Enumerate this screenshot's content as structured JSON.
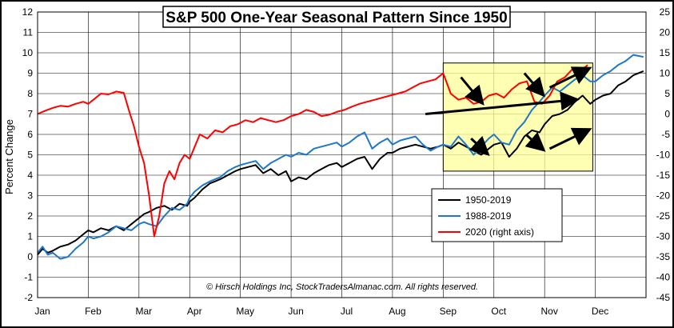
{
  "chart_data": {
    "type": "line",
    "title": "S&P 500 One-Year Seasonal Pattern Since 1950",
    "ylabel": "Percent Change",
    "copyright": "© Hirsch Holdings Inc, StockTradersAlmanac.com. All rights reserved.",
    "ylim": [
      -2,
      12
    ],
    "y_ticks": [
      -2,
      -1,
      0,
      1,
      2,
      3,
      4,
      5,
      6,
      7,
      8,
      9,
      10,
      11,
      12
    ],
    "y2lim": [
      -45,
      25
    ],
    "y2_ticks": [
      -45,
      -40,
      -35,
      -30,
      -25,
      -20,
      -15,
      -10,
      -5,
      0,
      5,
      10,
      15,
      20,
      25
    ],
    "x_ticks": [
      "Jan",
      "Feb",
      "Mar",
      "Apr",
      "May",
      "Jun",
      "Jul",
      "Aug",
      "Sep",
      "Oct",
      "Nov",
      "Dec"
    ],
    "grid": true,
    "legend_position": "lower-right",
    "highlight_region": {
      "x_start": 8.0,
      "x_end": 10.95,
      "y_start": 4.2,
      "y_end": 9.5,
      "color": "#ffff99"
    },
    "series": [
      {
        "name": "1950-2019",
        "color": "#000000",
        "axis": "left",
        "x": [
          0.0,
          0.1,
          0.2,
          0.3,
          0.45,
          0.6,
          0.75,
          0.9,
          1.0,
          1.1,
          1.25,
          1.4,
          1.55,
          1.7,
          1.85,
          2.0,
          2.1,
          2.2,
          2.35,
          2.5,
          2.65,
          2.8,
          2.95,
          3.0,
          3.1,
          3.25,
          3.4,
          3.5,
          3.6,
          3.75,
          3.9,
          4.0,
          4.15,
          4.3,
          4.45,
          4.6,
          4.75,
          4.9,
          5.0,
          5.15,
          5.3,
          5.45,
          5.6,
          5.75,
          5.9,
          6.0,
          6.15,
          6.3,
          6.45,
          6.6,
          6.75,
          6.9,
          7.0,
          7.15,
          7.3,
          7.45,
          7.6,
          7.75,
          7.9,
          8.0,
          8.15,
          8.3,
          8.45,
          8.6,
          8.75,
          8.9,
          9.0,
          9.15,
          9.3,
          9.45,
          9.6,
          9.75,
          9.9,
          10.0,
          10.15,
          10.3,
          10.45,
          10.6,
          10.75,
          10.9,
          11.0,
          11.15,
          11.3,
          11.45,
          11.6,
          11.75,
          11.95
        ],
        "y": [
          0.1,
          0.4,
          0.2,
          0.3,
          0.5,
          0.6,
          0.8,
          1.1,
          1.3,
          1.2,
          1.4,
          1.3,
          1.5,
          1.3,
          1.6,
          1.9,
          2.1,
          2.2,
          2.4,
          2.5,
          2.3,
          2.6,
          2.5,
          2.7,
          2.9,
          3.3,
          3.6,
          3.7,
          3.8,
          4.0,
          4.2,
          4.3,
          4.4,
          4.5,
          4.1,
          4.3,
          4.0,
          4.2,
          3.7,
          3.9,
          3.8,
          4.1,
          4.3,
          4.5,
          4.6,
          4.4,
          4.6,
          4.8,
          4.9,
          4.3,
          4.8,
          5.1,
          5.1,
          5.3,
          5.4,
          5.5,
          5.4,
          5.3,
          5.4,
          5.5,
          5.3,
          5.6,
          5.4,
          5.2,
          5.0,
          5.3,
          5.5,
          5.6,
          4.9,
          5.3,
          5.9,
          6.2,
          6.1,
          6.5,
          6.9,
          7.0,
          7.2,
          7.6,
          7.9,
          7.5,
          7.7,
          7.9,
          8.0,
          8.4,
          8.6,
          8.9,
          9.1
        ]
      },
      {
        "name": "1988-2019",
        "color": "#1e78c8",
        "axis": "left",
        "x": [
          0.0,
          0.1,
          0.2,
          0.3,
          0.45,
          0.6,
          0.75,
          0.9,
          1.0,
          1.1,
          1.25,
          1.4,
          1.55,
          1.7,
          1.85,
          2.0,
          2.1,
          2.2,
          2.35,
          2.5,
          2.65,
          2.8,
          2.95,
          3.0,
          3.1,
          3.25,
          3.4,
          3.5,
          3.6,
          3.75,
          3.9,
          4.0,
          4.15,
          4.3,
          4.45,
          4.6,
          4.75,
          4.9,
          5.0,
          5.15,
          5.3,
          5.45,
          5.6,
          5.75,
          5.9,
          6.0,
          6.15,
          6.3,
          6.45,
          6.6,
          6.75,
          6.9,
          7.0,
          7.15,
          7.3,
          7.45,
          7.6,
          7.75,
          7.9,
          8.0,
          8.15,
          8.3,
          8.45,
          8.6,
          8.75,
          8.9,
          9.0,
          9.15,
          9.3,
          9.45,
          9.6,
          9.75,
          9.9,
          10.0,
          10.15,
          10.3,
          10.45,
          10.6,
          10.75,
          10.9,
          11.0,
          11.15,
          11.3,
          11.45,
          11.6,
          11.75,
          11.95
        ],
        "y": [
          0.2,
          0.5,
          0.1,
          0.2,
          -0.1,
          0.0,
          0.4,
          0.7,
          1.0,
          0.9,
          1.0,
          1.2,
          1.5,
          1.4,
          1.3,
          1.6,
          1.7,
          1.6,
          1.5,
          2.0,
          2.4,
          2.3,
          2.6,
          2.9,
          3.2,
          3.5,
          3.7,
          3.8,
          3.9,
          4.2,
          4.4,
          4.5,
          4.6,
          4.7,
          4.3,
          4.6,
          4.8,
          5.0,
          4.9,
          5.1,
          5.0,
          5.3,
          5.4,
          5.5,
          5.6,
          5.4,
          5.6,
          5.9,
          6.1,
          5.3,
          5.6,
          5.8,
          5.5,
          5.7,
          5.8,
          5.9,
          5.5,
          5.2,
          5.4,
          5.5,
          5.4,
          5.9,
          5.5,
          5.0,
          5.4,
          5.8,
          6.0,
          5.6,
          5.5,
          6.2,
          6.6,
          7.2,
          7.6,
          7.9,
          8.3,
          8.1,
          8.4,
          8.7,
          8.9,
          8.6,
          8.6,
          8.9,
          9.1,
          9.4,
          9.6,
          9.9,
          9.8
        ]
      },
      {
        "name": "2020 (right axis)",
        "color": "#ff0000",
        "axis": "right",
        "x": [
          0.0,
          0.15,
          0.3,
          0.45,
          0.6,
          0.75,
          0.9,
          1.0,
          1.1,
          1.25,
          1.4,
          1.55,
          1.7,
          1.8,
          1.9,
          2.0,
          2.1,
          2.2,
          2.3,
          2.4,
          2.5,
          2.6,
          2.7,
          2.8,
          2.9,
          3.0,
          3.1,
          3.2,
          3.35,
          3.5,
          3.65,
          3.8,
          3.95,
          4.1,
          4.25,
          4.4,
          4.55,
          4.7,
          4.85,
          5.0,
          5.15,
          5.3,
          5.45,
          5.6,
          5.75,
          5.9,
          6.05,
          6.2,
          6.35,
          6.5,
          6.65,
          6.8,
          6.95,
          7.1,
          7.25,
          7.4,
          7.55,
          7.7,
          7.85,
          8.0,
          8.15,
          8.3,
          8.45,
          8.6,
          8.75,
          8.9,
          9.05,
          9.2,
          9.35,
          9.5,
          9.65,
          9.8,
          9.95,
          10.1,
          10.25,
          10.4,
          10.55,
          10.7,
          10.85
        ],
        "y": [
          0.0,
          0.8,
          1.5,
          2.0,
          1.8,
          2.5,
          3.0,
          2.5,
          3.5,
          5.0,
          4.8,
          5.5,
          5.2,
          1.0,
          -3.0,
          -8.0,
          -12.0,
          -20.0,
          -30.0,
          -25.0,
          -17.0,
          -14.0,
          -16.0,
          -12.0,
          -10.0,
          -11.0,
          -8.0,
          -5.0,
          -6.0,
          -4.0,
          -4.5,
          -3.0,
          -2.5,
          -1.5,
          -2.0,
          -1.0,
          -1.5,
          -2.0,
          -1.5,
          -0.5,
          0.0,
          1.0,
          0.5,
          -0.5,
          -0.2,
          0.5,
          1.0,
          1.8,
          2.5,
          3.0,
          3.5,
          4.0,
          4.5,
          5.0,
          5.5,
          6.5,
          7.5,
          8.0,
          8.5,
          10.0,
          5.0,
          3.5,
          4.0,
          2.5,
          3.0,
          4.5,
          5.0,
          4.0,
          6.0,
          7.5,
          8.0,
          3.0,
          2.5,
          4.5,
          8.0,
          9.0,
          11.0,
          10.5,
          12.0
        ]
      }
    ],
    "annotation_arrows": [
      {
        "from": [
          8.35,
          8.8
        ],
        "to": [
          8.75,
          7.6
        ]
      },
      {
        "from": [
          9.6,
          9.0
        ],
        "to": [
          9.95,
          8.0
        ]
      },
      {
        "from": [
          10.1,
          8.3
        ],
        "to": [
          10.85,
          9.2
        ]
      },
      {
        "from": [
          7.65,
          7.0
        ],
        "to": [
          10.6,
          7.7
        ]
      },
      {
        "from": [
          8.55,
          5.8
        ],
        "to": [
          8.85,
          5.1
        ]
      },
      {
        "from": [
          9.65,
          5.95
        ],
        "to": [
          9.95,
          5.3
        ]
      },
      {
        "from": [
          10.1,
          5.3
        ],
        "to": [
          10.85,
          6.2
        ]
      }
    ]
  }
}
